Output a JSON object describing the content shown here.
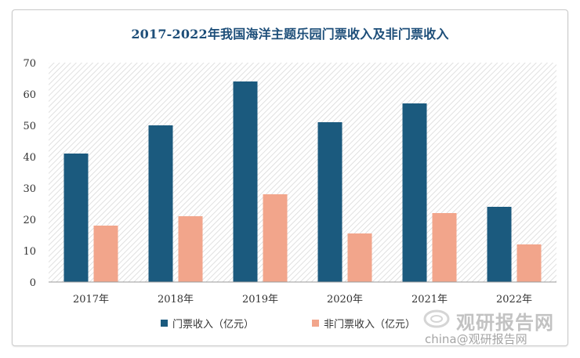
{
  "chart_data": {
    "type": "bar",
    "title": "2017-2022年我国海洋主题乐园门票收入及非门票收入",
    "categories": [
      "2017年",
      "2018年",
      "2019年",
      "2020年",
      "2021年",
      "2022年"
    ],
    "series": [
      {
        "name": "门票收入（亿元）",
        "color": "#1b5a7e",
        "values": [
          41,
          50,
          64,
          51,
          57,
          24
        ]
      },
      {
        "name": "非门票收入（亿元）",
        "color": "#f2a58b",
        "values": [
          18,
          21,
          28,
          15.5,
          22,
          12
        ]
      }
    ],
    "ylim": [
      0,
      70
    ],
    "yticks": [
      "0",
      "10",
      "20",
      "30",
      "40",
      "50",
      "60",
      "70"
    ],
    "legend_position": "bottom",
    "grid": false,
    "plot_background": "diagonal-hatch"
  },
  "watermark": {
    "brand": "观研报告网",
    "site": "china@观研报告网"
  }
}
